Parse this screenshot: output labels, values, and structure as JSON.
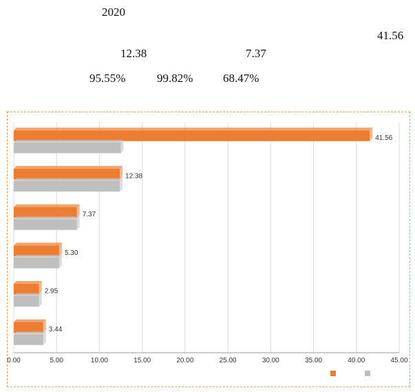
{
  "header": {
    "year": "2020",
    "value_top_right": "41.56",
    "value_a": "12.38",
    "value_b": "7.37",
    "pct_a": "95.55%",
    "pct_b": "99.82%",
    "pct_c": "68.47%"
  },
  "colors": {
    "series_2020": "#ed7d31",
    "series_2019": "#bfbfbf",
    "frame": "#e8a060"
  },
  "chart_data": {
    "type": "bar",
    "orientation": "horizontal",
    "categories": [
      "",
      "",
      "",
      "",
      "",
      ""
    ],
    "series": [
      {
        "name": "",
        "values": [
          41.56,
          12.38,
          7.37,
          5.3,
          2.95,
          3.44
        ]
      },
      {
        "name": "",
        "values": [
          12.5,
          12.38,
          7.37,
          5.3,
          2.95,
          3.44
        ]
      }
    ],
    "value_labels": [
      "41.56",
      "12.38",
      "7.37",
      "5.30",
      "2.95",
      "3.44"
    ],
    "xlim": [
      0,
      45
    ],
    "xticks": [
      "0.00",
      "5.00",
      "10.00",
      "15.00",
      "20.00",
      "25.00",
      "30.00",
      "35.00",
      "40.00",
      "45.00"
    ],
    "grid": true,
    "legend": "bottom"
  }
}
